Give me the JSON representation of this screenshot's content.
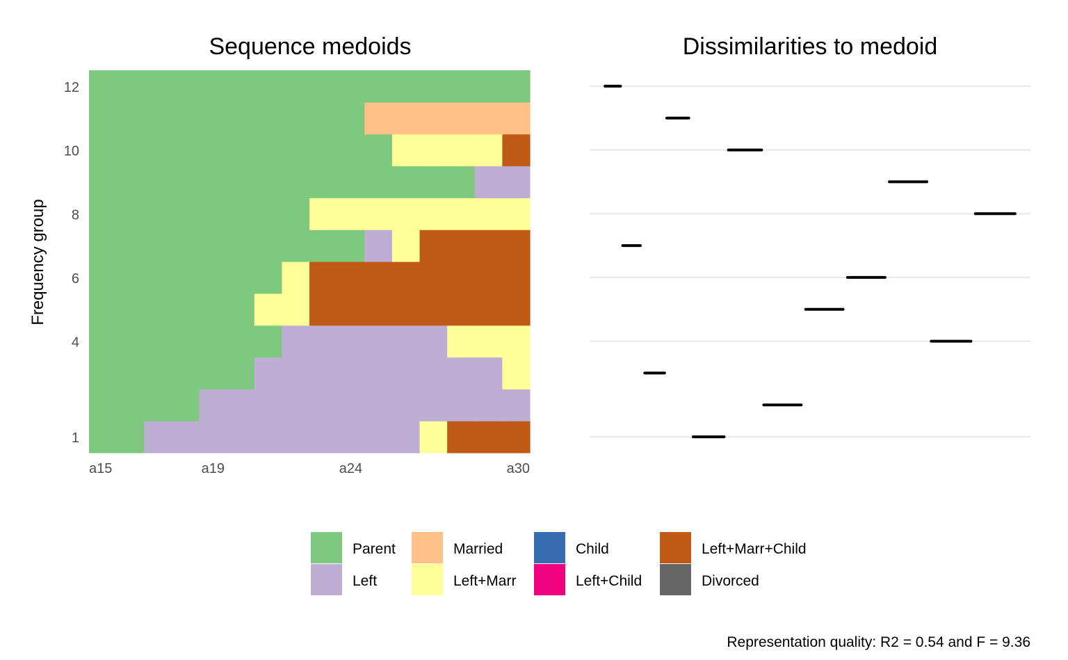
{
  "chart_data": [
    {
      "type": "heatmap",
      "title": "Sequence medoids",
      "ylabel": "Frequency group",
      "xlabel": "",
      "x_categories": [
        "a15",
        "a16",
        "a17",
        "a18",
        "a19",
        "a20",
        "a21",
        "a22",
        "a23",
        "a24",
        "a25",
        "a26",
        "a27",
        "a28",
        "a29",
        "a30"
      ],
      "x_tick_labels": [
        "a15",
        "a19",
        "a24",
        "a30"
      ],
      "y_tick_labels": [
        "1",
        "4",
        "6",
        "8",
        "10",
        "12"
      ],
      "y_tick_values": [
        1,
        4,
        6,
        8,
        10,
        12
      ],
      "ylim": [
        1,
        12
      ],
      "rows": [
        {
          "group": 1,
          "states": [
            "Parent",
            "Parent",
            "Left",
            "Left",
            "Left",
            "Left",
            "Left",
            "Left",
            "Left",
            "Left",
            "Left",
            "Left",
            "Left+Marr",
            "Left+Marr+Child",
            "Left+Marr+Child",
            "Left+Marr+Child"
          ]
        },
        {
          "group": 2,
          "states": [
            "Parent",
            "Parent",
            "Parent",
            "Parent",
            "Left",
            "Left",
            "Left",
            "Left",
            "Left",
            "Left",
            "Left",
            "Left",
            "Left",
            "Left",
            "Left",
            "Left"
          ]
        },
        {
          "group": 3,
          "states": [
            "Parent",
            "Parent",
            "Parent",
            "Parent",
            "Parent",
            "Parent",
            "Left",
            "Left",
            "Left",
            "Left",
            "Left",
            "Left",
            "Left",
            "Left",
            "Left",
            "Left+Marr"
          ]
        },
        {
          "group": 4,
          "states": [
            "Parent",
            "Parent",
            "Parent",
            "Parent",
            "Parent",
            "Parent",
            "Parent",
            "Left",
            "Left",
            "Left",
            "Left",
            "Left",
            "Left",
            "Left+Marr",
            "Left+Marr",
            "Left+Marr"
          ]
        },
        {
          "group": 5,
          "states": [
            "Parent",
            "Parent",
            "Parent",
            "Parent",
            "Parent",
            "Parent",
            "Left+Marr",
            "Left+Marr",
            "Left+Marr+Child",
            "Left+Marr+Child",
            "Left+Marr+Child",
            "Left+Marr+Child",
            "Left+Marr+Child",
            "Left+Marr+Child",
            "Left+Marr+Child",
            "Left+Marr+Child"
          ]
        },
        {
          "group": 6,
          "states": [
            "Parent",
            "Parent",
            "Parent",
            "Parent",
            "Parent",
            "Parent",
            "Parent",
            "Left+Marr",
            "Left+Marr+Child",
            "Left+Marr+Child",
            "Left+Marr+Child",
            "Left+Marr+Child",
            "Left+Marr+Child",
            "Left+Marr+Child",
            "Left+Marr+Child",
            "Left+Marr+Child"
          ]
        },
        {
          "group": 7,
          "states": [
            "Parent",
            "Parent",
            "Parent",
            "Parent",
            "Parent",
            "Parent",
            "Parent",
            "Parent",
            "Parent",
            "Parent",
            "Left",
            "Left+Marr",
            "Left+Marr+Child",
            "Left+Marr+Child",
            "Left+Marr+Child",
            "Left+Marr+Child"
          ]
        },
        {
          "group": 8,
          "states": [
            "Parent",
            "Parent",
            "Parent",
            "Parent",
            "Parent",
            "Parent",
            "Parent",
            "Parent",
            "Left+Marr",
            "Left+Marr",
            "Left+Marr",
            "Left+Marr",
            "Left+Marr",
            "Left+Marr",
            "Left+Marr",
            "Left+Marr"
          ]
        },
        {
          "group": 9,
          "states": [
            "Parent",
            "Parent",
            "Parent",
            "Parent",
            "Parent",
            "Parent",
            "Parent",
            "Parent",
            "Parent",
            "Parent",
            "Parent",
            "Parent",
            "Parent",
            "Parent",
            "Left",
            "Left"
          ]
        },
        {
          "group": 10,
          "states": [
            "Parent",
            "Parent",
            "Parent",
            "Parent",
            "Parent",
            "Parent",
            "Parent",
            "Parent",
            "Parent",
            "Parent",
            "Parent",
            "Left+Marr",
            "Left+Marr",
            "Left+Marr",
            "Left+Marr",
            "Left+Marr+Child"
          ]
        },
        {
          "group": 11,
          "states": [
            "Parent",
            "Parent",
            "Parent",
            "Parent",
            "Parent",
            "Parent",
            "Parent",
            "Parent",
            "Parent",
            "Parent",
            "Married",
            "Married",
            "Married",
            "Married",
            "Married",
            "Married"
          ]
        },
        {
          "group": 12,
          "states": [
            "Parent",
            "Parent",
            "Parent",
            "Parent",
            "Parent",
            "Parent",
            "Parent",
            "Parent",
            "Parent",
            "Parent",
            "Parent",
            "Parent",
            "Parent",
            "Parent",
            "Parent",
            "Parent"
          ]
        }
      ]
    },
    {
      "type": "scatter",
      "title": "Dissimilarities to medoid",
      "xlabel": "",
      "ylabel": "",
      "grid": true,
      "note": "x axis unlabeled; values in relative units (0-100)",
      "segments": [
        {
          "group": 1,
          "from": 23.5,
          "to": 30.5
        },
        {
          "group": 2,
          "from": 39.5,
          "to": 48
        },
        {
          "group": 3,
          "from": 12.5,
          "to": 17
        },
        {
          "group": 4,
          "from": 77.5,
          "to": 86.5
        },
        {
          "group": 5,
          "from": 49,
          "to": 57.5
        },
        {
          "group": 6,
          "from": 58.5,
          "to": 67
        },
        {
          "group": 7,
          "from": 7.5,
          "to": 11.5
        },
        {
          "group": 8,
          "from": 87.5,
          "to": 96.5
        },
        {
          "group": 9,
          "from": 68,
          "to": 76.5
        },
        {
          "group": 10,
          "from": 31.5,
          "to": 39
        },
        {
          "group": 11,
          "from": 17.5,
          "to": 22.5
        },
        {
          "group": 12,
          "from": 3.5,
          "to": 7
        }
      ]
    }
  ],
  "legend": [
    {
      "label": "Parent",
      "color": "#7fc97f"
    },
    {
      "label": "Left",
      "color": "#beaed4"
    },
    {
      "label": "Married",
      "color": "#fdc086"
    },
    {
      "label": "Left+Marr",
      "color": "#ffff99"
    },
    {
      "label": "Child",
      "color": "#386cb0"
    },
    {
      "label": "Left+Child",
      "color": "#f0027f"
    },
    {
      "label": "Left+Marr+Child",
      "color": "#bf5b17"
    },
    {
      "label": "Divorced",
      "color": "#666666"
    }
  ],
  "caption": "Representation quality: R2 = 0.54 and F = 9.36"
}
